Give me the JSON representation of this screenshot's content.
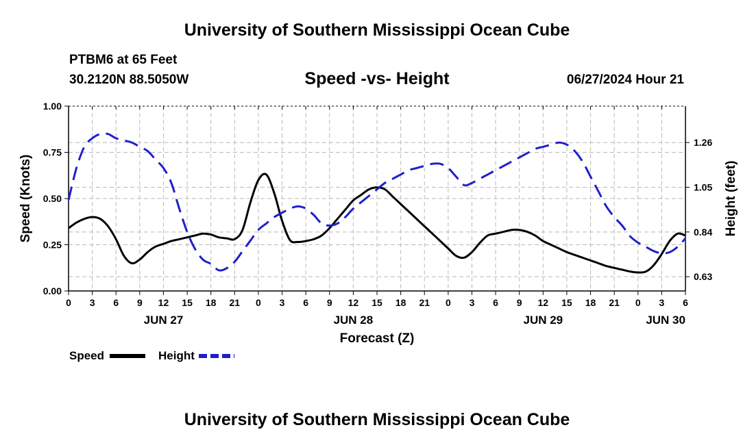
{
  "header": {
    "title": "University of Southern Mississippi Ocean Cube",
    "station": "PTBM6 at 65 Feet",
    "coords": "30.2120N  88.5050W",
    "subtitle": "Speed -vs- Height",
    "datetime": "06/27/2024 Hour 21"
  },
  "footer": {
    "title": "University of Southern Mississippi Ocean Cube"
  },
  "chart_data": {
    "type": "line",
    "title": "Speed -vs- Height",
    "xlabel": "Forecast (Z)",
    "ylabel": "Speed (Knots)",
    "y2label": "Height (feet)",
    "xlim": [
      0,
      78
    ],
    "ylim": [
      0,
      1
    ],
    "y2lim": [
      0.563,
      1.431
    ],
    "grid": true,
    "x_ticks": [
      0,
      3,
      6,
      9,
      12,
      15,
      18,
      21,
      24,
      27,
      30,
      33,
      36,
      39,
      42,
      45,
      48,
      51,
      54,
      57,
      60,
      63,
      66,
      69,
      72,
      75,
      78
    ],
    "x_tick_labels": [
      "0",
      "3",
      "6",
      "9",
      "12",
      "15",
      "18",
      "21",
      "0",
      "3",
      "6",
      "9",
      "12",
      "15",
      "18",
      "21",
      "0",
      "3",
      "6",
      "9",
      "12",
      "15",
      "18",
      "21",
      "0",
      "3",
      "6"
    ],
    "y_ticks": [
      0,
      0.25,
      0.5,
      0.75,
      1.0
    ],
    "y_tick_labels": [
      "0.00",
      "0.25",
      "0.50",
      "0.75",
      "1.00"
    ],
    "y2_ticks": [
      0.63,
      0.84,
      1.05,
      1.26
    ],
    "y2_tick_labels": [
      "0.63",
      "0.84",
      "1.05",
      "1.26"
    ],
    "date_labels": [
      {
        "label": "JUN 27",
        "x": 12
      },
      {
        "label": "JUN 28",
        "x": 36
      },
      {
        "label": "JUN 29",
        "x": 60
      },
      {
        "label": "JUN 30",
        "x": 75.5
      }
    ],
    "series": [
      {
        "name": "Speed",
        "axis": "left",
        "color": "#000000",
        "dash": "solid",
        "x": [
          0,
          1,
          2,
          3,
          4,
          5,
          6,
          7,
          8,
          9,
          10,
          11,
          12,
          13,
          14,
          15,
          16,
          17,
          18,
          19,
          20,
          21,
          22,
          23,
          24,
          25,
          26,
          27,
          28,
          29,
          30,
          31,
          32,
          33,
          34,
          35,
          36,
          37,
          38,
          39,
          40,
          41,
          42,
          43,
          44,
          45,
          46,
          47,
          48,
          49,
          50,
          51,
          52,
          53,
          54,
          55,
          56,
          57,
          58,
          59,
          60,
          61,
          62,
          63,
          64,
          65,
          66,
          67,
          68,
          69,
          70,
          71,
          72,
          73,
          74,
          75,
          76,
          77,
          78
        ],
        "values": [
          0.34,
          0.37,
          0.39,
          0.4,
          0.39,
          0.35,
          0.28,
          0.19,
          0.15,
          0.17,
          0.21,
          0.24,
          0.255,
          0.27,
          0.28,
          0.29,
          0.3,
          0.31,
          0.305,
          0.29,
          0.285,
          0.28,
          0.33,
          0.48,
          0.6,
          0.63,
          0.53,
          0.38,
          0.275,
          0.265,
          0.27,
          0.28,
          0.3,
          0.34,
          0.39,
          0.44,
          0.49,
          0.52,
          0.55,
          0.56,
          0.55,
          0.51,
          0.47,
          0.43,
          0.39,
          0.35,
          0.31,
          0.27,
          0.23,
          0.19,
          0.18,
          0.21,
          0.26,
          0.3,
          0.31,
          0.32,
          0.33,
          0.33,
          0.32,
          0.3,
          0.27,
          0.25,
          0.23,
          0.21,
          0.195,
          0.18,
          0.165,
          0.15,
          0.135,
          0.125,
          0.115,
          0.105,
          0.1,
          0.105,
          0.14,
          0.2,
          0.27,
          0.31,
          0.3
        ]
      },
      {
        "name": "Height",
        "axis": "right",
        "color": "#1f1fcc",
        "dash": "dashed",
        "x": [
          0,
          1,
          2,
          3,
          4,
          5,
          6,
          7,
          8,
          9,
          10,
          11,
          12,
          13,
          14,
          15,
          16,
          17,
          18,
          19,
          20,
          21,
          22,
          23,
          24,
          25,
          26,
          27,
          28,
          29,
          30,
          31,
          32,
          33,
          34,
          35,
          36,
          37,
          38,
          39,
          40,
          41,
          42,
          43,
          44,
          45,
          46,
          47,
          48,
          49,
          50,
          51,
          52,
          53,
          54,
          55,
          56,
          57,
          58,
          59,
          60,
          61,
          62,
          63,
          64,
          65,
          66,
          67,
          68,
          69,
          70,
          71,
          72,
          73,
          74,
          75,
          76,
          77,
          78
        ],
        "values": [
          0.99,
          1.14,
          1.24,
          1.28,
          1.3,
          1.3,
          1.28,
          1.27,
          1.26,
          1.24,
          1.22,
          1.18,
          1.14,
          1.07,
          0.95,
          0.84,
          0.76,
          0.71,
          0.69,
          0.66,
          0.67,
          0.7,
          0.75,
          0.8,
          0.85,
          0.88,
          0.91,
          0.93,
          0.95,
          0.96,
          0.95,
          0.92,
          0.88,
          0.87,
          0.88,
          0.91,
          0.95,
          0.98,
          1.01,
          1.04,
          1.07,
          1.09,
          1.11,
          1.13,
          1.14,
          1.15,
          1.16,
          1.16,
          1.14,
          1.1,
          1.06,
          1.07,
          1.09,
          1.11,
          1.13,
          1.15,
          1.17,
          1.19,
          1.21,
          1.23,
          1.24,
          1.25,
          1.26,
          1.25,
          1.22,
          1.17,
          1.1,
          1.03,
          0.96,
          0.91,
          0.87,
          0.82,
          0.79,
          0.77,
          0.75,
          0.74,
          0.745,
          0.77,
          0.81
        ]
      }
    ],
    "legend": [
      {
        "label": "Speed",
        "color": "#000000",
        "dash": "solid"
      },
      {
        "label": "Height",
        "color": "#1f1fcc",
        "dash": "dashed"
      }
    ]
  }
}
